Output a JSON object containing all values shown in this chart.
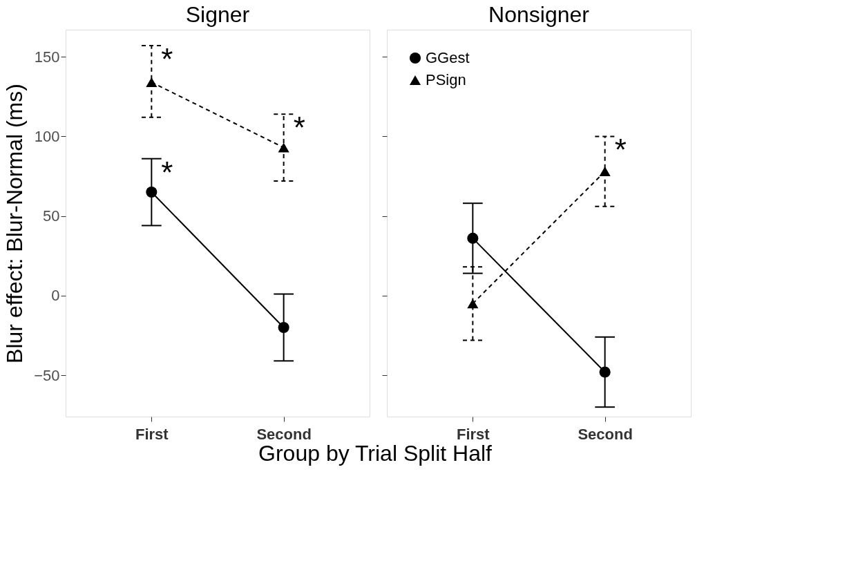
{
  "chart_data": [
    {
      "type": "line",
      "title": "Signer",
      "ylabel": "Blur effect: Blur-Normal (ms)",
      "xlabel": "Group by Trial Split Half",
      "categories": [
        "First",
        "Second"
      ],
      "ylim": [
        -76,
        167
      ],
      "yticks": [
        -50,
        0,
        50,
        100,
        150
      ],
      "grid": false,
      "legend": false,
      "series": [
        {
          "color": "#000000",
          "marker": "circle",
          "line_style": "solid",
          "values": [
            65,
            -20
          ],
          "errors": [
            [
              44,
              86
            ],
            [
              -41,
              1
            ]
          ]
        },
        {
          "color": "#000000",
          "marker": "triangle",
          "line_style": "dashed",
          "values": [
            134,
            93
          ],
          "errors": [
            [
              112,
              157
            ],
            [
              72,
              114
            ]
          ]
        }
      ],
      "annotations": [
        {
          "text": "*",
          "x": "First",
          "y": 86
        },
        {
          "text": "*",
          "x": "First",
          "y": 157
        },
        {
          "text": "*",
          "x": "Second",
          "y": 114
        }
      ]
    },
    {
      "type": "line",
      "title": "Nonsigner",
      "categories": [
        "First",
        "Second"
      ],
      "ylim": [
        -76,
        167
      ],
      "yticks": [
        -50,
        0,
        50,
        100,
        150
      ],
      "grid": false,
      "legend": "top left",
      "tick_labels": "x",
      "series": [
        {
          "name": "GGest",
          "color": "#000000",
          "marker": "circle",
          "line_style": "solid",
          "values": [
            36,
            -48
          ],
          "errors": [
            [
              14,
              58
            ],
            [
              -70,
              -26
            ]
          ]
        },
        {
          "name": "PSign",
          "color": "#000000",
          "marker": "triangle",
          "line_style": "dashed",
          "values": [
            -5,
            78
          ],
          "errors": [
            [
              -28,
              18
            ],
            [
              56,
              100
            ]
          ]
        }
      ],
      "annotations": [
        {
          "text": "*",
          "x": "Second",
          "y": 100
        }
      ]
    }
  ]
}
